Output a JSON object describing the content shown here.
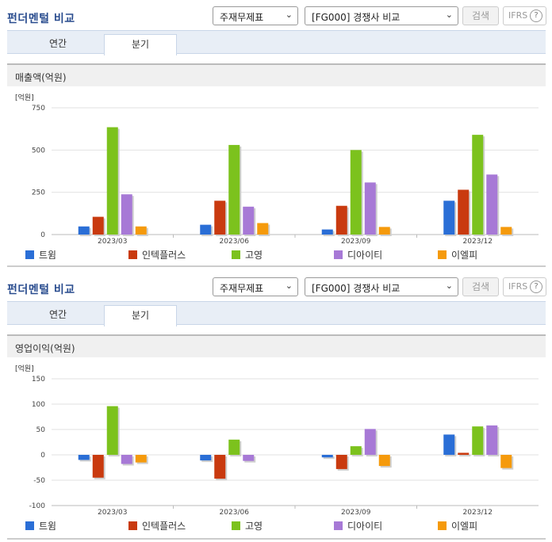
{
  "header": {
    "title": "펀더멘털 비교",
    "theme_select": "주재무제표",
    "compare_select": "[FG000] 경쟁사 비교",
    "search_label": "검색",
    "ifrs_label": "IFRS",
    "help_glyph": "?"
  },
  "tabs": [
    {
      "label": "연간"
    },
    {
      "label": "분기"
    }
  ],
  "colors": {
    "트윔": "#2a6ed6",
    "인텍플러스": "#c93a0f",
    "고영": "#7cc21d",
    "디아이티": "#a779d6",
    "이엘피": "#f59a0c"
  },
  "legend": [
    "트윔",
    "인텍플러스",
    "고영",
    "디아이티",
    "이엘피"
  ],
  "chart_data": [
    {
      "type": "bar",
      "title": "매출액(억원)",
      "unit": "[억원]",
      "categories": [
        "2023/03",
        "2023/06",
        "2023/09",
        "2023/12"
      ],
      "ylim": [
        0,
        750
      ],
      "yticks": [
        "750",
        "500",
        "250",
        "0"
      ],
      "ytick_values": [
        750,
        500,
        250,
        0
      ],
      "series": [
        {
          "name": "트윔",
          "values": [
            48,
            58,
            30,
            200
          ]
        },
        {
          "name": "인텍플러스",
          "values": [
            105,
            200,
            170,
            265
          ]
        },
        {
          "name": "고영",
          "values": [
            635,
            530,
            500,
            590
          ]
        },
        {
          "name": "디아이티",
          "values": [
            238,
            165,
            308,
            355
          ]
        },
        {
          "name": "이엘피",
          "values": [
            48,
            68,
            45,
            45
          ]
        }
      ]
    },
    {
      "type": "bar",
      "title": "영업이익(억원)",
      "unit": "[억원]",
      "categories": [
        "2023/03",
        "2023/06",
        "2023/09",
        "2023/12"
      ],
      "ylim": [
        -100,
        150
      ],
      "yticks": [
        "150",
        "100",
        "50",
        "0",
        "-50",
        "-100"
      ],
      "ytick_values": [
        150,
        100,
        50,
        0,
        -50,
        -100
      ],
      "series": [
        {
          "name": "트윔",
          "values": [
            -10,
            -11,
            -5,
            40
          ]
        },
        {
          "name": "인텍플러스",
          "values": [
            -45,
            -47,
            -28,
            4
          ]
        },
        {
          "name": "고영",
          "values": [
            96,
            30,
            17,
            56
          ]
        },
        {
          "name": "디아이티",
          "values": [
            -18,
            -12,
            51,
            58
          ]
        },
        {
          "name": "이엘피",
          "values": [
            -15,
            0,
            -22,
            -26
          ]
        }
      ]
    }
  ]
}
